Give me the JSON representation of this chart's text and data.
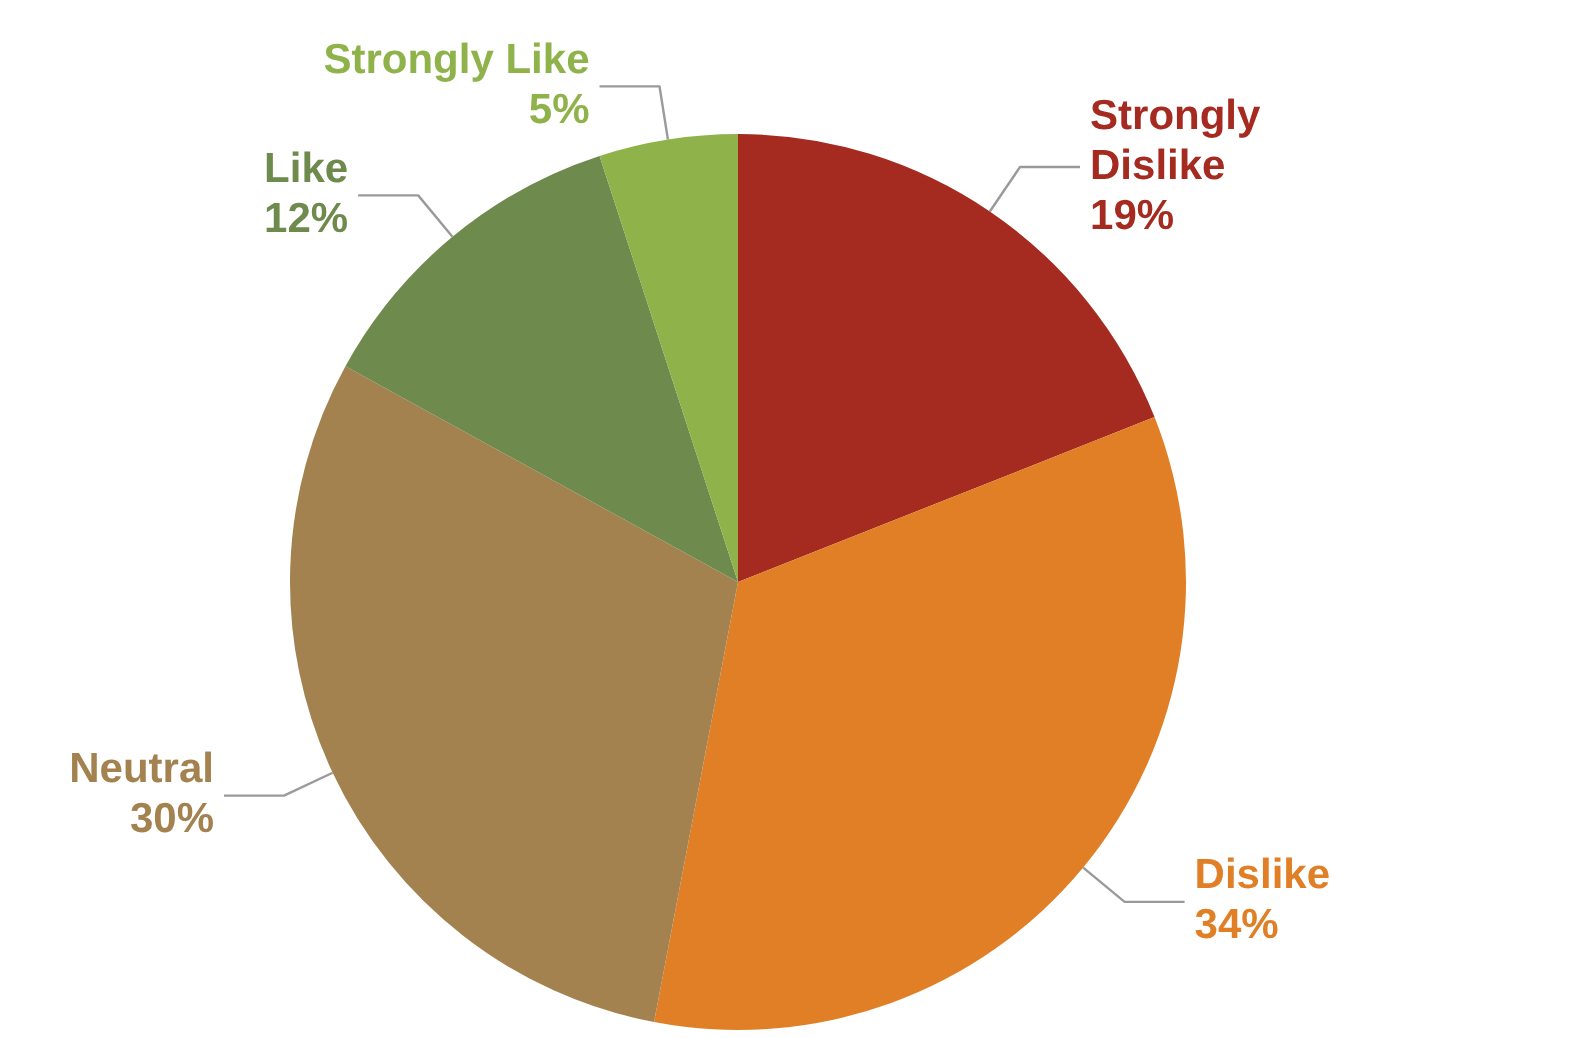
{
  "chart_data": {
    "type": "pie",
    "categories": [
      "Strongly Dislike",
      "Dislike",
      "Neutral",
      "Like",
      "Strongly Like"
    ],
    "values": [
      19,
      34,
      30,
      12,
      5
    ],
    "colors": [
      "#a52a1f",
      "#e07f26",
      "#a38250",
      "#6e8a4c",
      "#8fb34a"
    ],
    "value_labels": [
      "19%",
      "34%",
      "30%",
      "12%",
      "5%"
    ]
  }
}
